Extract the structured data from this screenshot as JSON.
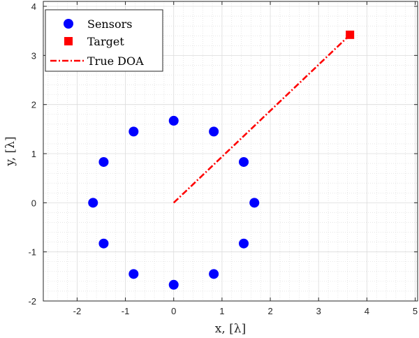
{
  "chart_data": {
    "type": "scatter",
    "title": "",
    "xlabel": "x, [λ]",
    "ylabel": "y, [λ]",
    "xlim": [
      -2.7,
      5.05
    ],
    "ylim": [
      -2,
      4.1
    ],
    "xticks": [
      -2,
      -1,
      0,
      1,
      2,
      3,
      4,
      5
    ],
    "yticks": [
      -2,
      -1,
      0,
      1,
      2,
      3,
      4
    ],
    "xtick_labels": [
      "-2",
      "-1",
      "0",
      "1",
      "2",
      "3",
      "4",
      "5"
    ],
    "ytick_labels": [
      "-2",
      "-1",
      "0",
      "1",
      "2",
      "3",
      "4"
    ],
    "grid": true,
    "minor_grid": true,
    "legend_position": "top-left",
    "series": [
      {
        "name": "Sensors",
        "marker": "circle",
        "color": "#0000ff",
        "points": [
          [
            1.67,
            0
          ],
          [
            1.45,
            0.83
          ],
          [
            0.83,
            1.45
          ],
          [
            0,
            1.67
          ],
          [
            -0.83,
            1.45
          ],
          [
            -1.45,
            0.83
          ],
          [
            -1.67,
            0
          ],
          [
            -1.45,
            -0.83
          ],
          [
            -0.83,
            -1.45
          ],
          [
            0,
            -1.67
          ],
          [
            0.83,
            -1.45
          ],
          [
            1.45,
            -0.83
          ]
        ]
      },
      {
        "name": "Target",
        "marker": "square",
        "color": "#ff0000",
        "points": [
          [
            3.65,
            3.42
          ]
        ]
      },
      {
        "name": "True DOA",
        "line": "dash-dot",
        "color": "#ff0000",
        "points": [
          [
            0,
            0
          ],
          [
            3.65,
            3.42
          ]
        ]
      }
    ]
  }
}
